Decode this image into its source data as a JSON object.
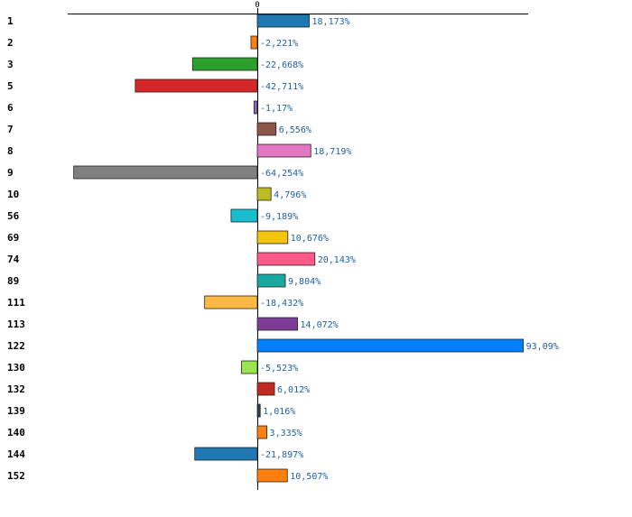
{
  "chart_data": {
    "type": "bar",
    "orientation": "horizontal",
    "title": "",
    "xlabel": "",
    "ylabel": "",
    "zero_tick_label": "0",
    "xlim": [
      -71,
      103
    ],
    "categories": [
      "1",
      "2",
      "3",
      "5",
      "6",
      "7",
      "8",
      "9",
      "10",
      "56",
      "69",
      "74",
      "89",
      "111",
      "113",
      "122",
      "130",
      "132",
      "139",
      "140",
      "144",
      "152"
    ],
    "values": [
      18.173,
      -2.221,
      -22.668,
      -42.711,
      -1.17,
      6.556,
      18.719,
      -64.254,
      4.796,
      -9.189,
      10.676,
      20.143,
      9.804,
      -18.432,
      14.072,
      93.09,
      -5.523,
      6.012,
      1.016,
      3.335,
      -21.897,
      10.507
    ],
    "value_labels": [
      "18,173%",
      "-2,221%",
      "-22,668%",
      "-42,711%",
      "-1,17%",
      "6,556%",
      "18,719%",
      "-64,254%",
      "4,796%",
      "-9,189%",
      "10,676%",
      "20,143%",
      "9,804%",
      "-18,432%",
      "14,072%",
      "93,09%",
      "-5,523%",
      "6,012%",
      "1,016%",
      "3,335%",
      "-21,897%",
      "10,507%"
    ],
    "colors": [
      "#1f77b4",
      "#ff7f0e",
      "#2ca02c",
      "#d62728",
      "#9467bd",
      "#8c564b",
      "#e377c2",
      "#7f7f7f",
      "#bcbd22",
      "#17becf",
      "#f2c40f",
      "#ff5a8a",
      "#17a8a0",
      "#ffb841",
      "#7d3c98",
      "#0080ff",
      "#98e550",
      "#c0291f",
      "#2c3e50",
      "#ff7f0e",
      "#1f77b4",
      "#ff7f0e"
    ]
  }
}
